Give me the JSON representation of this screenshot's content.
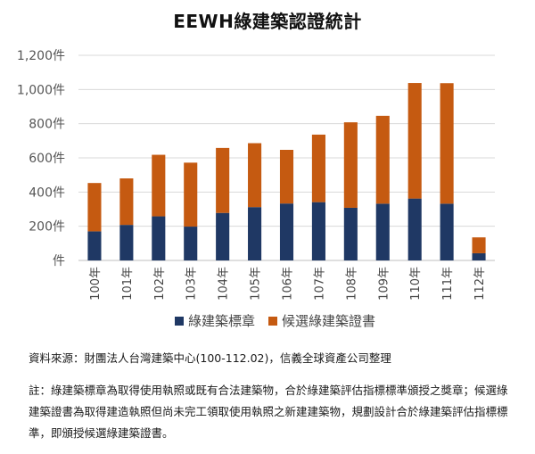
{
  "chart_data": {
    "type": "bar",
    "stacked": true,
    "title": "EEWH綠建築認證統計",
    "categories": [
      "100年",
      "101年",
      "102年",
      "103年",
      "104年",
      "105年",
      "106年",
      "107年",
      "108年",
      "109年",
      "110年",
      "111年",
      "112年"
    ],
    "series": [
      {
        "name": "綠建築標章",
        "color": "#1f3864",
        "values": [
          170,
          208,
          258,
          198,
          278,
          312,
          333,
          341,
          308,
          332,
          362,
          332,
          42
        ]
      },
      {
        "name": "候選綠建築證書",
        "color": "#c55a11",
        "values": [
          283,
          272,
          360,
          374,
          380,
          374,
          314,
          395,
          500,
          514,
          676,
          705,
          93
        ]
      }
    ],
    "ylim": [
      0,
      1200
    ],
    "yticks": [
      0,
      200,
      400,
      600,
      800,
      1000,
      1200
    ],
    "ytick_labels": [
      "件",
      "200件",
      "400件",
      "600件",
      "800件",
      "1,000件",
      "1,200件"
    ],
    "grid": true,
    "legend": "bottom"
  },
  "notes": {
    "source": "資料來源：財團法人台灣建築中心(100-112.02)，信義全球資產公司整理",
    "footnote": "註：綠建築標章為取得使用執照或既有合法建築物，合於綠建築評估指標標準頒授之獎章；候選綠建築證書為取得建造執照但尚未完工領取使用執照之新建建築物，規劃設計合於綠建築評估指標標準，即頒授候選綠建築證書。"
  }
}
